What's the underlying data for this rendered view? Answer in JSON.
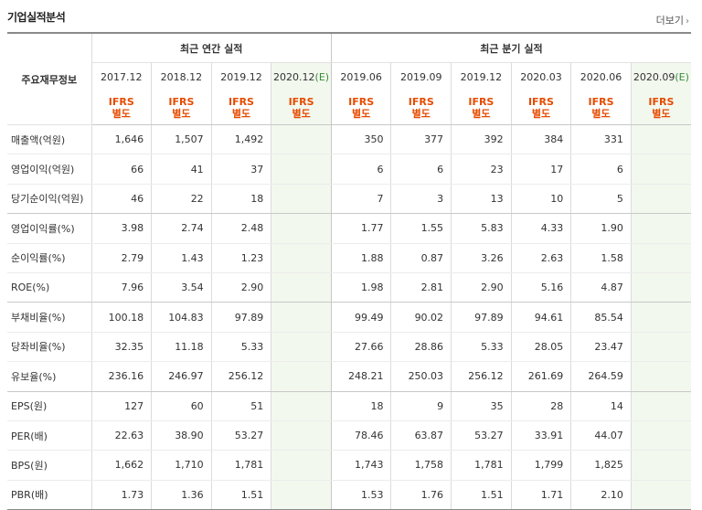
{
  "header": {
    "title": "기업실적분석",
    "more_label": "더보기",
    "more_arrow": "›"
  },
  "table": {
    "row_header": "주요재무정보",
    "annual_group": "최근 연간 실적",
    "quarter_group": "최근 분기 실적",
    "annual_periods": [
      "2017.12",
      "2018.12",
      "2019.12",
      "2020.12"
    ],
    "annual_estimate_suffix": "(E)",
    "quarter_periods": [
      "2019.06",
      "2019.09",
      "2019.12",
      "2020.03",
      "2020.06",
      "2020.09"
    ],
    "quarter_estimate_suffix": "(E)",
    "ifrs_line1": "IFRS",
    "ifrs_line2": "별도",
    "rows": [
      {
        "label": "매출액(억원)",
        "values": [
          "1,646",
          "1,507",
          "1,492",
          "",
          "350",
          "377",
          "392",
          "384",
          "331",
          ""
        ]
      },
      {
        "label": "영업이익(억원)",
        "values": [
          "66",
          "41",
          "37",
          "",
          "6",
          "6",
          "23",
          "17",
          "6",
          ""
        ]
      },
      {
        "label": "당기순이익(억원)",
        "values": [
          "46",
          "22",
          "18",
          "",
          "7",
          "3",
          "13",
          "10",
          "5",
          ""
        ]
      },
      {
        "label": "영업이익률(%)",
        "values": [
          "3.98",
          "2.74",
          "2.48",
          "",
          "1.77",
          "1.55",
          "5.83",
          "4.33",
          "1.90",
          ""
        ]
      },
      {
        "label": "순이익률(%)",
        "values": [
          "2.79",
          "1.43",
          "1.23",
          "",
          "1.88",
          "0.87",
          "3.26",
          "2.63",
          "1.58",
          ""
        ]
      },
      {
        "label": "ROE(%)",
        "values": [
          "7.96",
          "3.54",
          "2.90",
          "",
          "1.98",
          "2.81",
          "2.90",
          "5.16",
          "4.87",
          ""
        ]
      },
      {
        "label": "부채비율(%)",
        "values": [
          "100.18",
          "104.83",
          "97.89",
          "",
          "99.49",
          "90.02",
          "97.89",
          "94.61",
          "85.54",
          ""
        ]
      },
      {
        "label": "당좌비율(%)",
        "values": [
          "32.35",
          "11.18",
          "5.33",
          "",
          "27.66",
          "28.86",
          "5.33",
          "28.05",
          "23.47",
          ""
        ]
      },
      {
        "label": "유보율(%)",
        "values": [
          "236.16",
          "246.97",
          "256.12",
          "",
          "248.21",
          "250.03",
          "256.12",
          "261.69",
          "264.59",
          ""
        ]
      },
      {
        "label": "EPS(원)",
        "values": [
          "127",
          "60",
          "51",
          "",
          "18",
          "9",
          "35",
          "28",
          "14",
          ""
        ]
      },
      {
        "label": "PER(배)",
        "values": [
          "22.63",
          "38.90",
          "53.27",
          "",
          "78.46",
          "63.87",
          "53.27",
          "33.91",
          "44.07",
          ""
        ]
      },
      {
        "label": "BPS(원)",
        "values": [
          "1,662",
          "1,710",
          "1,781",
          "",
          "1,743",
          "1,758",
          "1,781",
          "1,799",
          "1,825",
          ""
        ]
      },
      {
        "label": "PBR(배)",
        "values": [
          "1.73",
          "1.36",
          "1.51",
          "",
          "1.53",
          "1.76",
          "1.51",
          "1.71",
          "2.10",
          ""
        ]
      }
    ]
  }
}
